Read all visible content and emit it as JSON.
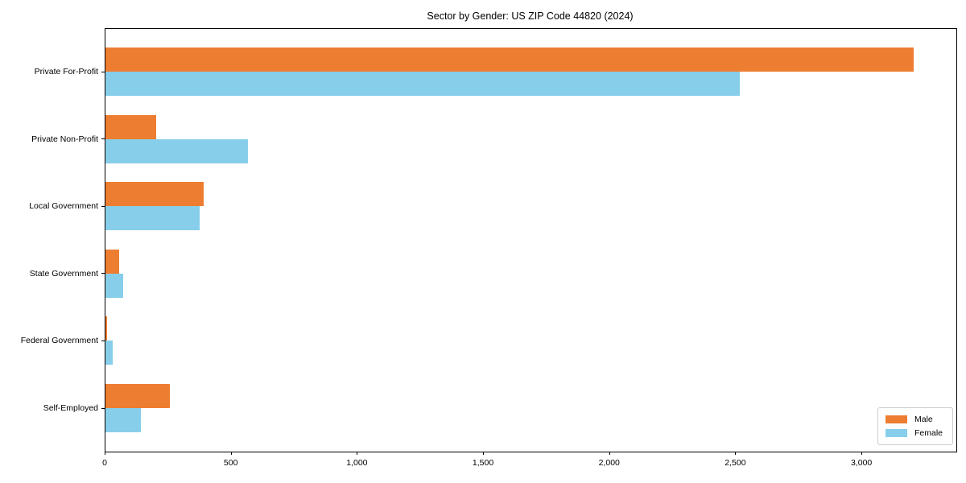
{
  "chart_data": {
    "type": "bar",
    "orientation": "horizontal",
    "title": "Sector by Gender: US ZIP Code 44820 (2024)",
    "categories": [
      "Private For-Profit",
      "Private Non-Profit",
      "Local Government",
      "State Government",
      "Federal Government",
      "Self-Employed"
    ],
    "series": [
      {
        "name": "Male",
        "color": "#ed7d31",
        "values": [
          3205,
          200,
          390,
          55,
          5,
          255
        ]
      },
      {
        "name": "Female",
        "color": "#87ceeb",
        "values": [
          2515,
          565,
          372,
          69,
          30,
          141
        ]
      }
    ],
    "xlabel": "",
    "ylabel": "",
    "xlim": [
      0,
      3373
    ],
    "x_ticks": [
      {
        "value": 0,
        "label": "0"
      },
      {
        "value": 500,
        "label": "500"
      },
      {
        "value": 1000,
        "label": "1,000"
      },
      {
        "value": 1500,
        "label": "1,500"
      },
      {
        "value": 2000,
        "label": "2,000"
      },
      {
        "value": 2500,
        "label": "2,500"
      },
      {
        "value": 3000,
        "label": "3,000"
      }
    ],
    "grid": false,
    "legend": {
      "position": "lower right",
      "entries": [
        "Male",
        "Female"
      ]
    },
    "colors": {
      "background": "#ffffff",
      "axis": "#000000",
      "legend_border": "#cccccc",
      "male": "#ed7d31",
      "female": "#87ceeb"
    }
  }
}
